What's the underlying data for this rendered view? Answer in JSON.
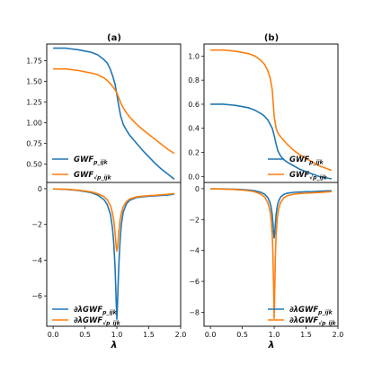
{
  "chart_data": [
    {
      "id": "a-top",
      "type": "line",
      "title": "(a)",
      "xlim": [
        -0.1,
        2.0
      ],
      "ylim": [
        0.28,
        1.95
      ],
      "yticks": [
        0.5,
        0.75,
        1.0,
        1.25,
        1.5,
        1.75
      ],
      "ytick_labels": [
        "0.50",
        "0.75",
        "1.00",
        "1.25",
        "1.50",
        "1.75"
      ],
      "xticks": [],
      "legend_position": "lower-left",
      "series": [
        {
          "name_main": "GWF",
          "name_sub": "p_ijk",
          "color": "#1f77b4",
          "x": [
            0,
            0.2,
            0.4,
            0.6,
            0.7,
            0.8,
            0.85,
            0.9,
            0.94,
            0.97,
            1.0,
            1.03,
            1.06,
            1.1,
            1.15,
            1.2,
            1.3,
            1.4,
            1.5,
            1.6,
            1.7,
            1.8,
            1.9
          ],
          "y": [
            1.9,
            1.9,
            1.88,
            1.85,
            1.82,
            1.76,
            1.72,
            1.64,
            1.55,
            1.47,
            1.34,
            1.2,
            1.08,
            0.98,
            0.91,
            0.85,
            0.76,
            0.67,
            0.59,
            0.51,
            0.44,
            0.38,
            0.32
          ]
        },
        {
          "name_main": "GWF",
          "name_sub": "√p_ijk",
          "color": "#ff7f0e",
          "x": [
            0,
            0.2,
            0.4,
            0.6,
            0.7,
            0.8,
            0.85,
            0.9,
            0.94,
            0.97,
            1.0,
            1.03,
            1.06,
            1.1,
            1.15,
            1.2,
            1.3,
            1.4,
            1.5,
            1.6,
            1.7,
            1.8,
            1.9
          ],
          "y": [
            1.65,
            1.65,
            1.63,
            1.6,
            1.58,
            1.54,
            1.51,
            1.47,
            1.43,
            1.4,
            1.36,
            1.3,
            1.24,
            1.18,
            1.12,
            1.07,
            0.99,
            0.92,
            0.86,
            0.8,
            0.74,
            0.68,
            0.63
          ]
        }
      ]
    },
    {
      "id": "b-top",
      "type": "line",
      "title": "(b)",
      "xlim": [
        -0.1,
        2.0
      ],
      "ylim": [
        -0.05,
        1.1
      ],
      "yticks": [
        0.0,
        0.2,
        0.4,
        0.6,
        0.8,
        1.0
      ],
      "ytick_labels": [
        "0.0",
        "0.2",
        "0.4",
        "0.6",
        "0.8",
        "1.0"
      ],
      "xticks": [],
      "legend_position": "lower-right",
      "series": [
        {
          "name_main": "GWF",
          "name_sub": "p_ijk",
          "color": "#1f77b4",
          "x": [
            0,
            0.2,
            0.4,
            0.6,
            0.7,
            0.8,
            0.85,
            0.9,
            0.94,
            0.97,
            1.0,
            1.03,
            1.06,
            1.1,
            1.15,
            1.2,
            1.3,
            1.4,
            1.5,
            1.6,
            1.7,
            1.8,
            1.9
          ],
          "y": [
            0.6,
            0.6,
            0.59,
            0.57,
            0.55,
            0.52,
            0.5,
            0.47,
            0.43,
            0.4,
            0.34,
            0.27,
            0.21,
            0.17,
            0.14,
            0.12,
            0.09,
            0.06,
            0.04,
            0.02,
            0.0,
            -0.01,
            -0.02
          ]
        },
        {
          "name_main": "GWF",
          "name_sub": "√p_ijk",
          "color": "#ff7f0e",
          "x": [
            0,
            0.2,
            0.4,
            0.6,
            0.7,
            0.8,
            0.85,
            0.9,
            0.94,
            0.97,
            1.0,
            1.03,
            1.06,
            1.1,
            1.15,
            1.2,
            1.3,
            1.4,
            1.5,
            1.6,
            1.7,
            1.8,
            1.9
          ],
          "y": [
            1.05,
            1.05,
            1.04,
            1.02,
            1.0,
            0.96,
            0.93,
            0.88,
            0.81,
            0.72,
            0.5,
            0.4,
            0.36,
            0.33,
            0.3,
            0.27,
            0.22,
            0.18,
            0.15,
            0.12,
            0.09,
            0.07,
            0.05
          ]
        }
      ]
    },
    {
      "id": "a-bottom",
      "type": "line",
      "title": "",
      "xlabel": "λ",
      "xlim": [
        -0.1,
        2.0
      ],
      "ylim": [
        -7.7,
        0.35
      ],
      "yticks": [
        0,
        -2,
        -4,
        -6
      ],
      "ytick_labels": [
        "0",
        "−2",
        "−4",
        "−6"
      ],
      "xticks": [
        0.0,
        0.5,
        1.0,
        1.5,
        2.0
      ],
      "xtick_labels": [
        "0.0",
        "0.5",
        "1.0",
        "1.5",
        "2.0"
      ],
      "legend_position": "lower-left",
      "series": [
        {
          "name_main": "∂λGWF",
          "name_sub": "p_ijk",
          "color": "#1f77b4",
          "x": [
            0,
            0.2,
            0.4,
            0.6,
            0.7,
            0.8,
            0.85,
            0.9,
            0.93,
            0.95,
            0.97,
            0.98,
            0.99,
            1.0,
            1.01,
            1.02,
            1.03,
            1.05,
            1.07,
            1.1,
            1.15,
            1.2,
            1.3,
            1.4,
            1.5,
            1.6,
            1.7,
            1.8,
            1.9
          ],
          "y": [
            -0.01,
            -0.04,
            -0.1,
            -0.22,
            -0.36,
            -0.62,
            -0.9,
            -1.45,
            -2.2,
            -3.0,
            -4.3,
            -5.3,
            -6.4,
            -7.3,
            -6.4,
            -5.3,
            -4.3,
            -2.9,
            -2.0,
            -1.3,
            -0.85,
            -0.65,
            -0.5,
            -0.45,
            -0.42,
            -0.4,
            -0.38,
            -0.35,
            -0.3
          ]
        },
        {
          "name_main": "∂λGWF",
          "name_sub": "√p_ijk",
          "color": "#ff7f0e",
          "x": [
            0,
            0.2,
            0.4,
            0.6,
            0.7,
            0.8,
            0.85,
            0.9,
            0.93,
            0.95,
            0.97,
            0.98,
            0.99,
            1.0,
            1.01,
            1.02,
            1.03,
            1.05,
            1.07,
            1.1,
            1.15,
            1.2,
            1.3,
            1.4,
            1.5,
            1.6,
            1.7,
            1.8,
            1.9
          ],
          "y": [
            -0.01,
            -0.03,
            -0.08,
            -0.18,
            -0.28,
            -0.45,
            -0.62,
            -0.95,
            -1.35,
            -1.75,
            -2.4,
            -2.85,
            -3.3,
            -3.5,
            -3.3,
            -2.85,
            -2.4,
            -1.75,
            -1.35,
            -1.0,
            -0.72,
            -0.58,
            -0.46,
            -0.42,
            -0.39,
            -0.37,
            -0.34,
            -0.31,
            -0.27
          ]
        }
      ]
    },
    {
      "id": "b-bottom",
      "type": "line",
      "title": "",
      "xlabel": "λ",
      "xlim": [
        -0.1,
        2.0
      ],
      "ylim": [
        -8.9,
        0.4
      ],
      "yticks": [
        0,
        -2,
        -4,
        -6,
        -8
      ],
      "ytick_labels": [
        "0",
        "−2",
        "−4",
        "−6",
        "−8"
      ],
      "xticks": [
        0.0,
        0.5,
        1.0,
        1.5,
        2.0
      ],
      "xtick_labels": [
        "0.0",
        "0.5",
        "1.0",
        "1.5",
        "2.0"
      ],
      "legend_position": "lower-right",
      "series": [
        {
          "name_main": "∂λGWF",
          "name_sub": "p_ijk",
          "color": "#1f77b4",
          "x": [
            0,
            0.2,
            0.4,
            0.6,
            0.7,
            0.8,
            0.85,
            0.9,
            0.93,
            0.95,
            0.97,
            0.98,
            0.99,
            1.0,
            1.01,
            1.02,
            1.03,
            1.05,
            1.07,
            1.1,
            1.15,
            1.2,
            1.3,
            1.4,
            1.5,
            1.6,
            1.7,
            1.8,
            1.9
          ],
          "y": [
            -0.01,
            -0.02,
            -0.04,
            -0.09,
            -0.14,
            -0.25,
            -0.36,
            -0.58,
            -0.85,
            -1.15,
            -1.7,
            -2.2,
            -2.8,
            -3.2,
            -2.8,
            -2.2,
            -1.7,
            -1.1,
            -0.8,
            -0.55,
            -0.38,
            -0.3,
            -0.24,
            -0.22,
            -0.2,
            -0.19,
            -0.17,
            -0.15,
            -0.13
          ]
        },
        {
          "name_main": "∂λGWF",
          "name_sub": "√p_ijk",
          "color": "#ff7f0e",
          "x": [
            0,
            0.2,
            0.4,
            0.6,
            0.7,
            0.8,
            0.85,
            0.9,
            0.93,
            0.95,
            0.97,
            0.98,
            0.99,
            1.0,
            1.01,
            1.02,
            1.03,
            1.05,
            1.07,
            1.1,
            1.15,
            1.2,
            1.3,
            1.4,
            1.5,
            1.6,
            1.7,
            1.8,
            1.9
          ],
          "y": [
            -0.01,
            -0.03,
            -0.06,
            -0.13,
            -0.21,
            -0.38,
            -0.55,
            -0.9,
            -1.35,
            -1.9,
            -3.0,
            -4.2,
            -6.2,
            -8.4,
            -6.2,
            -4.2,
            -3.0,
            -1.85,
            -1.3,
            -0.9,
            -0.6,
            -0.47,
            -0.36,
            -0.32,
            -0.29,
            -0.27,
            -0.25,
            -0.22,
            -0.19
          ]
        }
      ]
    }
  ]
}
